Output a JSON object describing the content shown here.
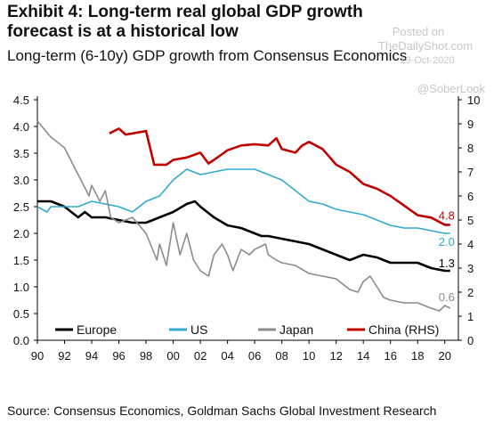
{
  "header": {
    "title": "Exhibit 4: Long-term real global GDP growth forecast is at a historical low",
    "subtitle": "Long-term (6-10y) GDP growth from Consensus Economics"
  },
  "watermark": {
    "posted_on": "Posted on",
    "site": "TheDailyShot.com",
    "date": "19-Oct-2020",
    "handle": "@SoberLook"
  },
  "footer": {
    "source": "Source: Consensus Economics, Goldman Sachs Global Investment Research"
  },
  "chart_data": {
    "type": "line",
    "x_ticks": [
      "90",
      "92",
      "94",
      "96",
      "98",
      "00",
      "02",
      "04",
      "06",
      "08",
      "10",
      "12",
      "14",
      "16",
      "18",
      "20"
    ],
    "xlim": [
      1990,
      2021
    ],
    "ylim_left": [
      0,
      4.5
    ],
    "ylim_right": [
      0,
      10
    ],
    "y_ticks_left": [
      "0.0",
      "0.5",
      "1.0",
      "1.5",
      "2.0",
      "2.5",
      "3.0",
      "3.5",
      "4.0",
      "4.5"
    ],
    "y_ticks_right": [
      "0",
      "1",
      "2",
      "3",
      "4",
      "5",
      "6",
      "7",
      "8",
      "9",
      "10"
    ],
    "grid": false,
    "legend_position": "bottom",
    "series": [
      {
        "name": "Europe",
        "axis": "left",
        "color": "#000000",
        "points": [
          [
            1990,
            2.6
          ],
          [
            1991,
            2.6
          ],
          [
            1992,
            2.5
          ],
          [
            1992.5,
            2.4
          ],
          [
            1993,
            2.3
          ],
          [
            1993.5,
            2.4
          ],
          [
            1994,
            2.3
          ],
          [
            1995,
            2.3
          ],
          [
            1996,
            2.25
          ],
          [
            1997,
            2.2
          ],
          [
            1998,
            2.2
          ],
          [
            1999,
            2.3
          ],
          [
            2000,
            2.4
          ],
          [
            2001,
            2.55
          ],
          [
            2001.6,
            2.6
          ],
          [
            2002,
            2.5
          ],
          [
            2003,
            2.3
          ],
          [
            2004,
            2.15
          ],
          [
            2005,
            2.1
          ],
          [
            2006,
            2.0
          ],
          [
            2006.5,
            1.95
          ],
          [
            2007,
            1.95
          ],
          [
            2008,
            1.9
          ],
          [
            2009,
            1.85
          ],
          [
            2010,
            1.8
          ],
          [
            2011,
            1.7
          ],
          [
            2012,
            1.6
          ],
          [
            2013,
            1.5
          ],
          [
            2013.5,
            1.55
          ],
          [
            2014,
            1.6
          ],
          [
            2015,
            1.55
          ],
          [
            2016,
            1.45
          ],
          [
            2017,
            1.45
          ],
          [
            2018,
            1.45
          ],
          [
            2019,
            1.35
          ],
          [
            2020,
            1.3
          ],
          [
            2020.4,
            1.3
          ]
        ],
        "end_label": "1.3"
      },
      {
        "name": "US",
        "axis": "left",
        "color": "#31a9d0",
        "points": [
          [
            1990,
            2.5
          ],
          [
            1990.7,
            2.4
          ],
          [
            1991,
            2.5
          ],
          [
            1992,
            2.5
          ],
          [
            1993,
            2.5
          ],
          [
            1994,
            2.6
          ],
          [
            1995,
            2.55
          ],
          [
            1996,
            2.5
          ],
          [
            1997,
            2.4
          ],
          [
            1998,
            2.6
          ],
          [
            1999,
            2.7
          ],
          [
            2000,
            3.0
          ],
          [
            2001,
            3.2
          ],
          [
            2001.5,
            3.15
          ],
          [
            2002,
            3.1
          ],
          [
            2003,
            3.15
          ],
          [
            2004,
            3.2
          ],
          [
            2005,
            3.2
          ],
          [
            2006,
            3.2
          ],
          [
            2007,
            3.1
          ],
          [
            2008,
            3.0
          ],
          [
            2009,
            2.8
          ],
          [
            2010,
            2.6
          ],
          [
            2011,
            2.55
          ],
          [
            2012,
            2.45
          ],
          [
            2013,
            2.4
          ],
          [
            2014,
            2.35
          ],
          [
            2015,
            2.25
          ],
          [
            2016,
            2.15
          ],
          [
            2017,
            2.1
          ],
          [
            2018,
            2.1
          ],
          [
            2019,
            2.05
          ],
          [
            2020,
            2.0
          ],
          [
            2020.4,
            2.0
          ]
        ],
        "end_label": "2.0"
      },
      {
        "name": "Japan",
        "axis": "left",
        "color": "#8c8c8c",
        "points": [
          [
            1990,
            4.1
          ],
          [
            1991,
            3.8
          ],
          [
            1992,
            3.6
          ],
          [
            1992.8,
            3.2
          ],
          [
            1993,
            3.1
          ],
          [
            1993.8,
            2.7
          ],
          [
            1994,
            2.9
          ],
          [
            1994.6,
            2.6
          ],
          [
            1995,
            2.8
          ],
          [
            1995.4,
            2.3
          ],
          [
            1996,
            2.2
          ],
          [
            1997,
            2.3
          ],
          [
            1998,
            2.0
          ],
          [
            1998.8,
            1.5
          ],
          [
            1999,
            1.8
          ],
          [
            1999.5,
            1.4
          ],
          [
            2000,
            2.2
          ],
          [
            2000.5,
            1.6
          ],
          [
            2001,
            2.0
          ],
          [
            2001.5,
            1.5
          ],
          [
            2002,
            1.3
          ],
          [
            2002.6,
            1.2
          ],
          [
            2003,
            1.6
          ],
          [
            2003.6,
            1.8
          ],
          [
            2004,
            1.6
          ],
          [
            2004.4,
            1.3
          ],
          [
            2005,
            1.7
          ],
          [
            2005.6,
            1.6
          ],
          [
            2006,
            1.7
          ],
          [
            2006.8,
            1.8
          ],
          [
            2007,
            1.6
          ],
          [
            2007.6,
            1.5
          ],
          [
            2008,
            1.45
          ],
          [
            2009,
            1.4
          ],
          [
            2010,
            1.25
          ],
          [
            2011,
            1.2
          ],
          [
            2012,
            1.15
          ],
          [
            2013,
            0.95
          ],
          [
            2013.6,
            0.9
          ],
          [
            2014,
            1.1
          ],
          [
            2014.5,
            1.2
          ],
          [
            2015,
            1.0
          ],
          [
            2015.5,
            0.8
          ],
          [
            2016,
            0.75
          ],
          [
            2017,
            0.7
          ],
          [
            2018,
            0.7
          ],
          [
            2019,
            0.6
          ],
          [
            2019.6,
            0.55
          ],
          [
            2020,
            0.65
          ],
          [
            2020.4,
            0.6
          ]
        ],
        "end_label": "0.6"
      },
      {
        "name": "China (RHS)",
        "axis": "right",
        "color": "#c00000",
        "points": [
          [
            1995.3,
            8.6
          ],
          [
            1996,
            8.8
          ],
          [
            1996.5,
            8.55
          ],
          [
            1997,
            8.6
          ],
          [
            1998,
            8.7
          ],
          [
            1998.6,
            7.3
          ],
          [
            1999.5,
            7.3
          ],
          [
            2000,
            7.5
          ],
          [
            2001,
            7.6
          ],
          [
            2002,
            7.8
          ],
          [
            2002.6,
            7.35
          ],
          [
            2003,
            7.5
          ],
          [
            2004,
            7.9
          ],
          [
            2005,
            8.1
          ],
          [
            2006,
            8.15
          ],
          [
            2007,
            8.1
          ],
          [
            2007.6,
            8.4
          ],
          [
            2008,
            7.95
          ],
          [
            2009,
            7.8
          ],
          [
            2009.5,
            8.1
          ],
          [
            2010,
            8.25
          ],
          [
            2011,
            7.95
          ],
          [
            2012,
            7.3
          ],
          [
            2013,
            7.0
          ],
          [
            2014,
            6.5
          ],
          [
            2015,
            6.3
          ],
          [
            2016,
            6.0
          ],
          [
            2017,
            5.6
          ],
          [
            2018,
            5.2
          ],
          [
            2019,
            5.1
          ],
          [
            2020,
            4.8
          ],
          [
            2020.4,
            4.8
          ]
        ],
        "end_label": "4.8"
      }
    ]
  }
}
